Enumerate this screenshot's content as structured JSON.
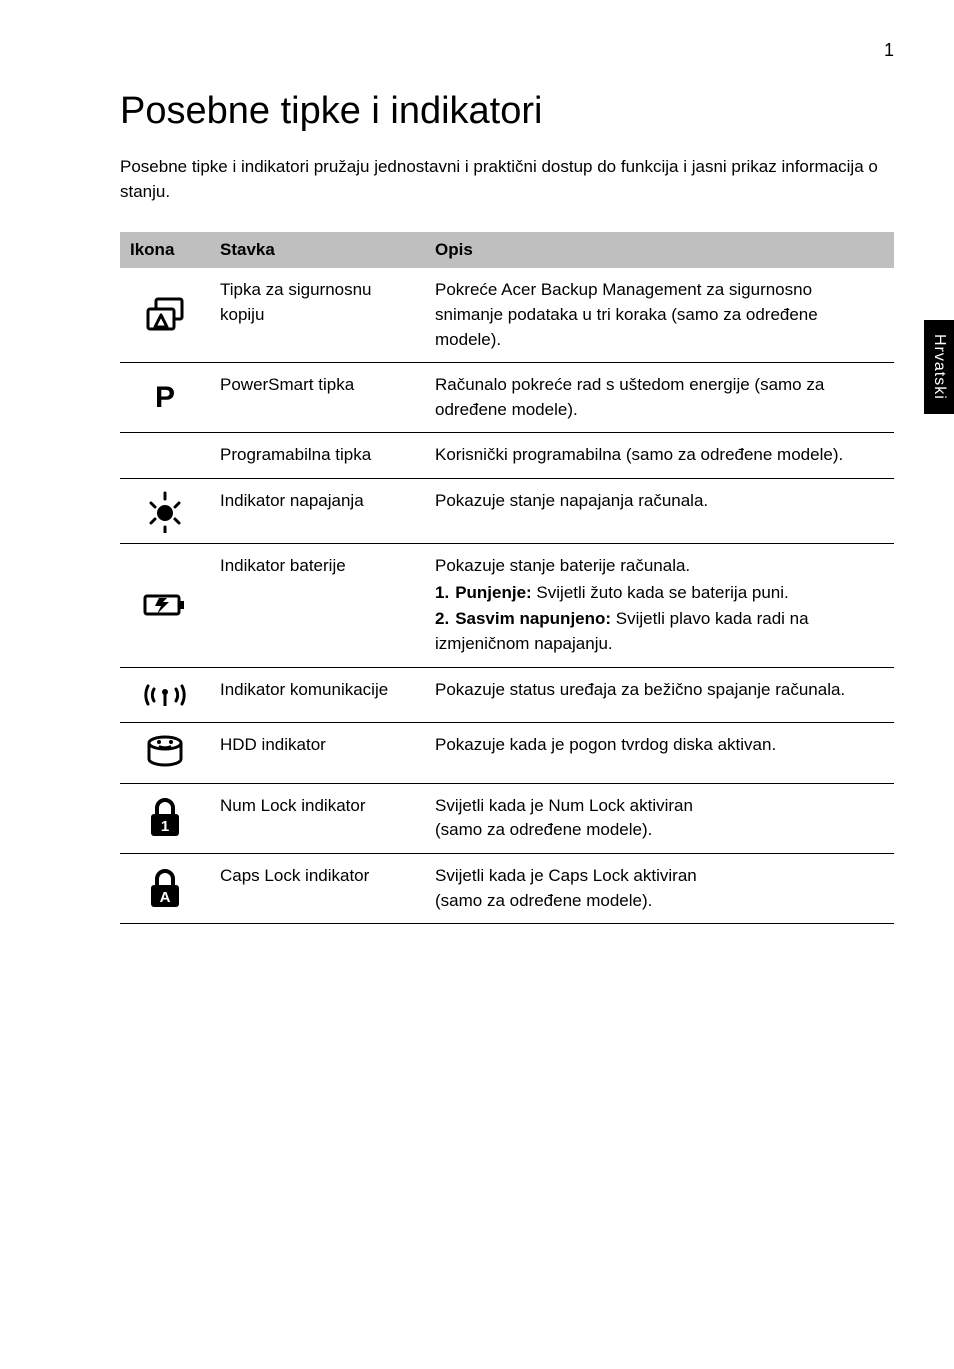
{
  "page_number": "1",
  "side_tab": "Hrvatski",
  "title": "Posebne tipke i indikatori",
  "intro": "Posebne tipke i indikatori pružaju jednostavni i praktični dostup do funkcija i jasni prikaz informacija o stanju.",
  "table": {
    "header": {
      "col1": "Ikona",
      "col2": "Stavka",
      "col3": "Opis"
    },
    "rows": [
      {
        "icon": "backup",
        "stavka": "Tipka za sigurnosnu kopiju",
        "opis": "Pokreće Acer Backup Management za sigurnosno snimanje podataka u tri koraka (samo za određene modele)."
      },
      {
        "icon": "letter-p",
        "stavka": "PowerSmart tipka",
        "opis": "Računalo pokreće rad s uštedom energije (samo za određene modele)."
      },
      {
        "icon": "none",
        "stavka": "Programabilna tipka",
        "opis": "Korisnički programabilna (samo za određene modele)."
      },
      {
        "icon": "power",
        "stavka": "Indikator napajanja",
        "opis": "Pokazuje stanje napajanja računala."
      },
      {
        "icon": "battery",
        "stavka": "Indikator baterije",
        "opis": "Pokazuje stanje baterije računala.",
        "list": [
          {
            "num": "1.",
            "label": "Punjenje:",
            "text": " Svijetli žuto kada se baterija puni."
          },
          {
            "num": "2.",
            "label": "Sasvim napunjeno:",
            "text": " Svijetli plavo kada radi na izmjeničnom napajanju."
          }
        ]
      },
      {
        "icon": "wireless",
        "stavka": "Indikator komunikacije",
        "opis": "Pokazuje status uređaja za bežično spajanje računala."
      },
      {
        "icon": "hdd",
        "stavka": "HDD indikator",
        "opis": "Pokazuje kada je pogon tvrdog diska aktivan."
      },
      {
        "icon": "numlock",
        "stavka": "Num Lock indikator",
        "opis": "Svijetli kada je Num Lock aktiviran\n(samo za određene modele)."
      },
      {
        "icon": "capslock",
        "stavka": "Caps Lock indikator",
        "opis": "Svijetli kada je Caps Lock aktiviran\n(samo za određene modele)."
      }
    ]
  },
  "style": {
    "background": "#ffffff",
    "text_color": "#000000",
    "header_bg": "#bfbfbf",
    "border_color": "#000000",
    "title_fontsize": 38,
    "body_fontsize": 17,
    "icon_col_width": 90,
    "stavka_col_width": 215
  }
}
